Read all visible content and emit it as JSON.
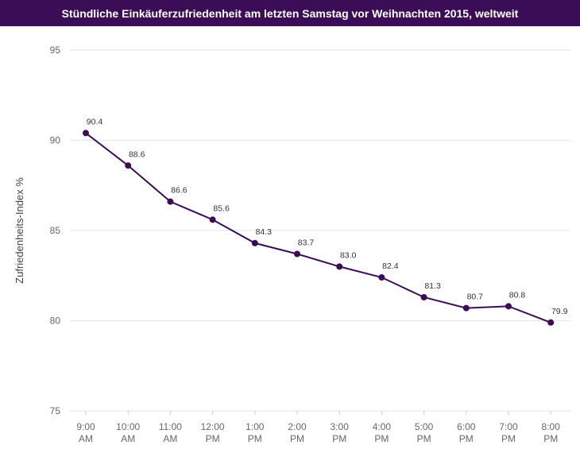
{
  "chart_data": {
    "type": "line",
    "title": "Stündliche Einkäuferzufriedenheit am letzten Samstag vor Weihnachten 2015, weltweit",
    "ylabel": "Zufriedenheits-Index %",
    "xlabel": "",
    "ylim": [
      75,
      95
    ],
    "yticks": [
      "75",
      "80",
      "85",
      "90",
      "95"
    ],
    "yticks_values": [
      75,
      80,
      85,
      90,
      95
    ],
    "categories": [
      [
        "9:00",
        "AM"
      ],
      [
        "10:00",
        "AM"
      ],
      [
        "11:00",
        "AM"
      ],
      [
        "12:00",
        "PM"
      ],
      [
        "1:00",
        "PM"
      ],
      [
        "2:00",
        "PM"
      ],
      [
        "3:00",
        "PM"
      ],
      [
        "4:00",
        "PM"
      ],
      [
        "5:00",
        "PM"
      ],
      [
        "6:00",
        "PM"
      ],
      [
        "7:00",
        "PM"
      ],
      [
        "8:00",
        "PM"
      ]
    ],
    "series": [
      {
        "name": "Zufriedenheits-Index",
        "values": [
          90.4,
          88.6,
          86.6,
          85.6,
          84.3,
          83.7,
          83.0,
          82.4,
          81.3,
          80.7,
          80.8,
          79.9
        ],
        "labels": [
          "90.4",
          "88.6",
          "86.6",
          "85.6",
          "84.3",
          "83.7",
          "83.0",
          "82.4",
          "81.3",
          "80.7",
          "80.8",
          "79.9"
        ]
      }
    ],
    "grid": true,
    "colors": {
      "series": "#3b0d57",
      "title_bg": "#3b0d57"
    }
  }
}
